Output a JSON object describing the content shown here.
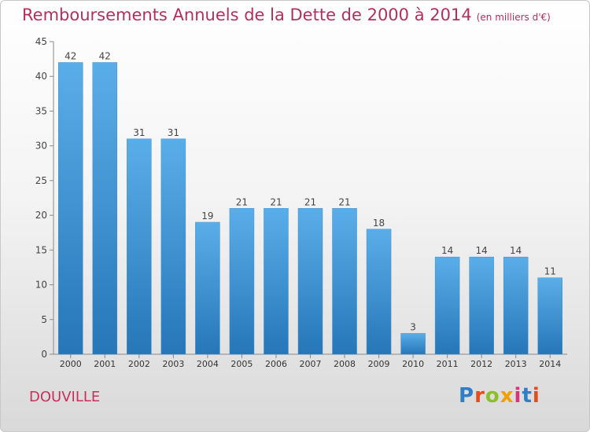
{
  "header": {
    "title": "Remboursements Annuels de la Dette de 2000 à 2014",
    "subtitle": "(en milliers d'€)"
  },
  "footer": {
    "town": "DOUVILLE",
    "logo_text": "Proxiti",
    "logo_colors": [
      "#2f7fc7",
      "#e84a1a",
      "#8bbf2a",
      "#f0a000",
      "#d8337a",
      "#2f7fc7",
      "#e84a1a"
    ]
  },
  "chart_data": {
    "type": "bar",
    "categories": [
      "2000",
      "2001",
      "2002",
      "2003",
      "2004",
      "2005",
      "2006",
      "2007",
      "2008",
      "2009",
      "2010",
      "2011",
      "2012",
      "2013",
      "2014"
    ],
    "values": [
      42,
      42,
      31,
      31,
      19,
      21,
      21,
      21,
      21,
      18,
      3,
      14,
      14,
      14,
      11
    ],
    "ylim": [
      0,
      45
    ],
    "yticks": [
      0,
      5,
      10,
      15,
      20,
      25,
      30,
      35,
      40,
      45
    ],
    "grid": false,
    "bar_color_top": "#5aaee8",
    "bar_color_bottom": "#2676b8"
  }
}
